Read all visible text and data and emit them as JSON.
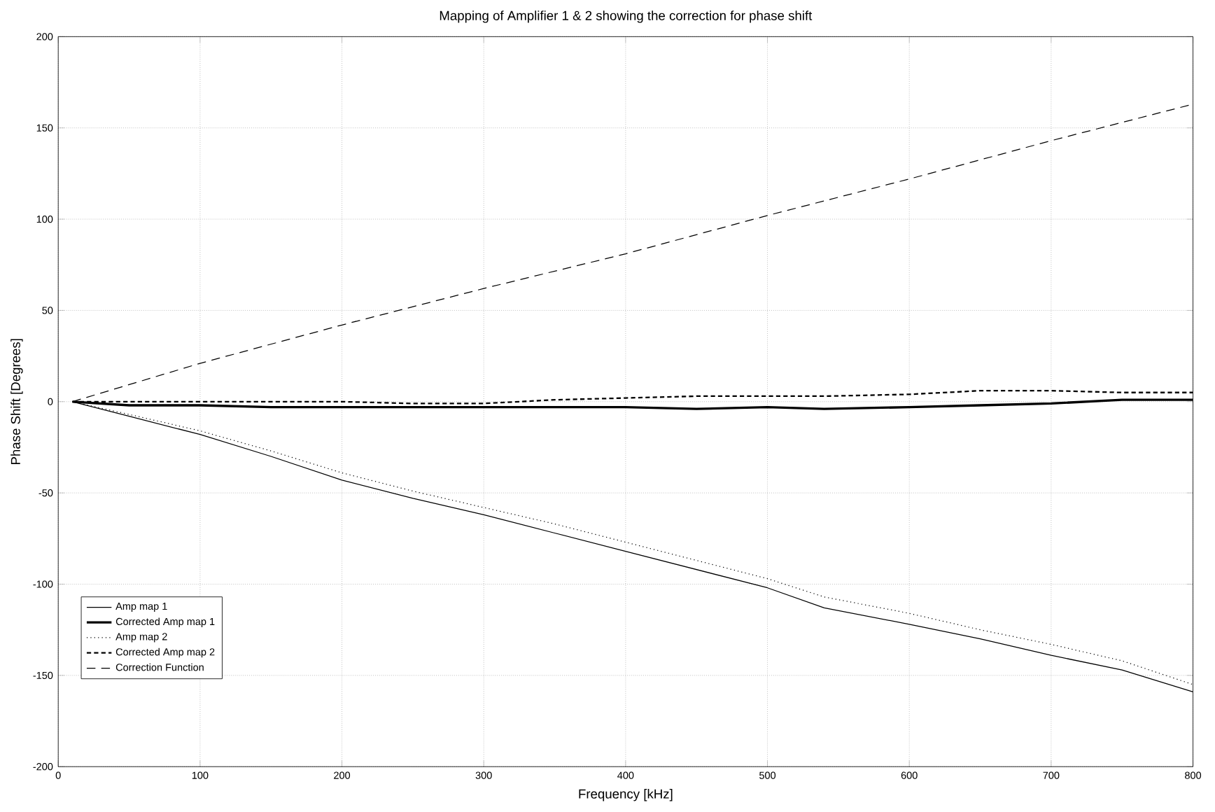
{
  "chart_data": {
    "type": "line",
    "title": "Mapping of Amplifier 1 & 2 showing the correction for phase shift",
    "xlabel": "Frequency [kHz]",
    "ylabel": "Phase Shift  [Degrees]",
    "xlim": [
      0,
      800
    ],
    "ylim": [
      -200,
      200
    ],
    "xticks": [
      0,
      100,
      200,
      300,
      400,
      500,
      600,
      700,
      800
    ],
    "yticks": [
      -200,
      -150,
      -100,
      -50,
      0,
      50,
      100,
      150,
      200
    ],
    "grid": true,
    "legend": "bottom left",
    "marker": "none",
    "series": [
      {
        "name": "Amp map 1",
        "color": "#000000",
        "line_style": "solid",
        "x": [
          10,
          50,
          100,
          150,
          200,
          250,
          300,
          350,
          400,
          450,
          500,
          540,
          600,
          650,
          700,
          750,
          800
        ],
        "values": [
          0,
          -8,
          -18,
          -30,
          -43,
          -53,
          -62,
          -72,
          -82,
          -92,
          -102,
          -113,
          -122,
          -130,
          -139,
          -147,
          -159
        ]
      },
      {
        "name": "Corrected Amp map 1",
        "color": "#000000",
        "line_style": "solid",
        "x": [
          10,
          50,
          100,
          150,
          200,
          250,
          300,
          350,
          400,
          450,
          500,
          540,
          600,
          650,
          700,
          750,
          800
        ],
        "values": [
          0,
          -2,
          -2,
          -3,
          -3,
          -3,
          -3,
          -3,
          -3,
          -4,
          -3,
          -4,
          -3,
          -2,
          -1,
          1,
          1
        ]
      },
      {
        "name": "Amp map 2",
        "color": "#000000",
        "line_style": "dotted",
        "x": [
          10,
          50,
          100,
          150,
          200,
          250,
          300,
          350,
          400,
          450,
          500,
          540,
          600,
          650,
          700,
          750,
          800
        ],
        "values": [
          0,
          -7,
          -16,
          -27,
          -39,
          -49,
          -58,
          -67,
          -77,
          -87,
          -97,
          -107,
          -116,
          -125,
          -133,
          -142,
          -155
        ]
      },
      {
        "name": "Corrected Amp map 2",
        "color": "#000000",
        "line_style": "dashed",
        "x": [
          10,
          50,
          100,
          150,
          200,
          250,
          300,
          350,
          400,
          450,
          500,
          540,
          600,
          650,
          700,
          750,
          800
        ],
        "values": [
          0,
          0,
          0,
          0,
          0,
          -1,
          -1,
          1,
          2,
          3,
          3,
          3,
          4,
          6,
          6,
          5,
          5
        ]
      },
      {
        "name": "Correction Function",
        "color": "#000000",
        "line_style": "dashed",
        "x": [
          10,
          100,
          200,
          300,
          400,
          500,
          600,
          700,
          800
        ],
        "values": [
          0,
          21,
          42,
          62,
          81,
          102,
          122,
          143,
          163
        ]
      }
    ]
  }
}
